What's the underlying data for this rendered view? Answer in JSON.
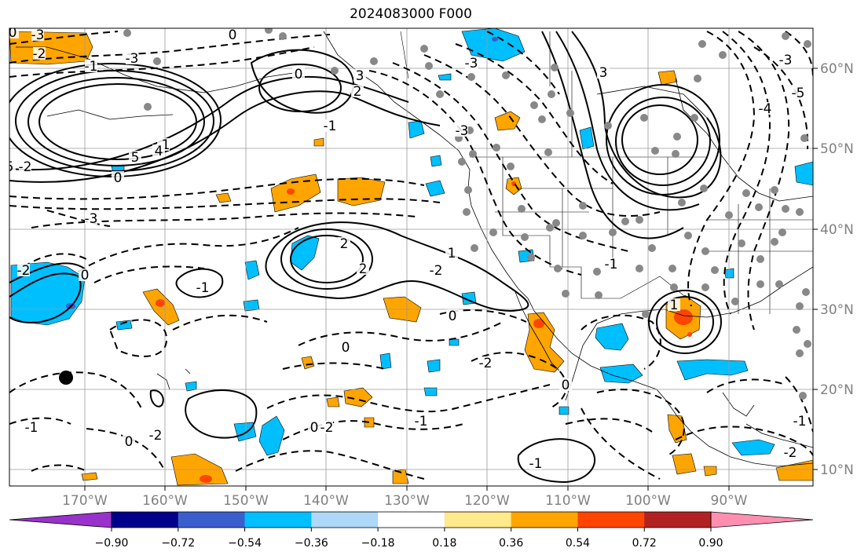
{
  "title": "2024083000 F000",
  "lon_labels": [
    "170°W",
    "160°W",
    "150°W",
    "140°W",
    "130°W",
    "120°W",
    "110°W",
    "100°W",
    "90°W"
  ],
  "lat_labels": [
    "60°N",
    "50°N",
    "40°N",
    "30°N",
    "20°N",
    "10°N"
  ],
  "colorbar": {
    "ticks": [
      "−0.90",
      "−0.72",
      "−0.54",
      "−0.36",
      "−0.18",
      "0.18",
      "0.36",
      "0.54",
      "0.72",
      "0.90"
    ],
    "colors": [
      "#9932cc",
      "#00008b",
      "#3a5fcd",
      "#00bfff",
      "#add8f7",
      "#ffffff",
      "#ffe98a",
      "#ffa500",
      "#ff4500",
      "#b22222",
      "#ff8fb1"
    ]
  },
  "contour_labels": [
    "-3",
    "-2",
    "-1",
    "0",
    "3",
    "2",
    "-1",
    "-3",
    "3",
    "-3",
    "5",
    "-1",
    "5",
    "4",
    "-2",
    "0",
    "-3",
    "-2",
    "0",
    "2",
    "2",
    "1",
    "-2",
    "0",
    "-1",
    "0",
    "-1",
    "-2",
    "0",
    "-2",
    "-1",
    "0",
    "-1",
    "-1",
    "0",
    "0",
    "-2",
    "1",
    "-3",
    "-4",
    "-5",
    "-1",
    "-2",
    "-3",
    "0"
  ],
  "shading": {
    "positive": "#ffa500",
    "positive_core": "#ff4500",
    "negative": "#00bfff",
    "negative_core": "#3a5fcd"
  }
}
